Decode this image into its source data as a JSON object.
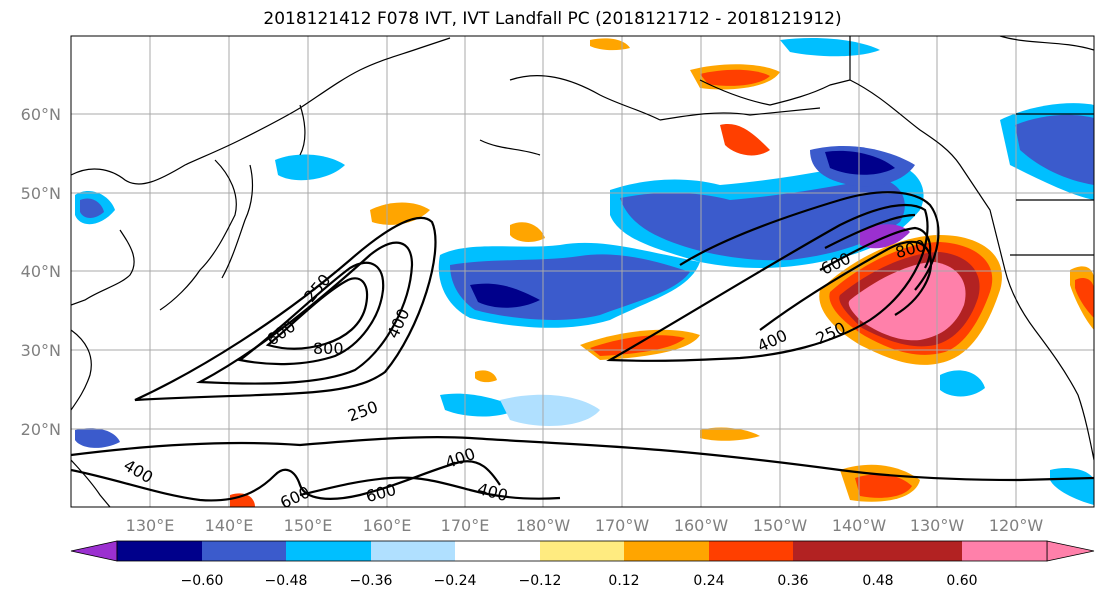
{
  "title": "2018121412 F078 IVT, IVT Landfall PC (2018121712 - 2018121912)",
  "lon_labels": [
    "130°E",
    "140°E",
    "150°E",
    "160°E",
    "170°E",
    "180°W",
    "170°W",
    "160°W",
    "150°W",
    "140°W",
    "130°W",
    "120°W"
  ],
  "lat_labels": [
    "20°N",
    "30°N",
    "40°N",
    "50°N",
    "60°N"
  ],
  "contour_labels": [
    "250",
    "600",
    "800",
    "400",
    "250",
    "400",
    "600",
    "600",
    "400",
    "400",
    "600",
    "800",
    "400",
    "250"
  ],
  "colorbar": {
    "colors": [
      "#9b30d0",
      "#00008b",
      "#3b5bcc",
      "#00bfff",
      "#b0e0ff",
      "#ffffff",
      "#ffeb80",
      "#ffa500",
      "#ff3f00",
      "#b22222",
      "#ff80aa"
    ],
    "tick_labels": [
      "−0.60",
      "−0.48",
      "−0.36",
      "−0.24",
      "−0.12",
      "0.12",
      "0.24",
      "0.36",
      "0.48",
      "0.60"
    ]
  }
}
